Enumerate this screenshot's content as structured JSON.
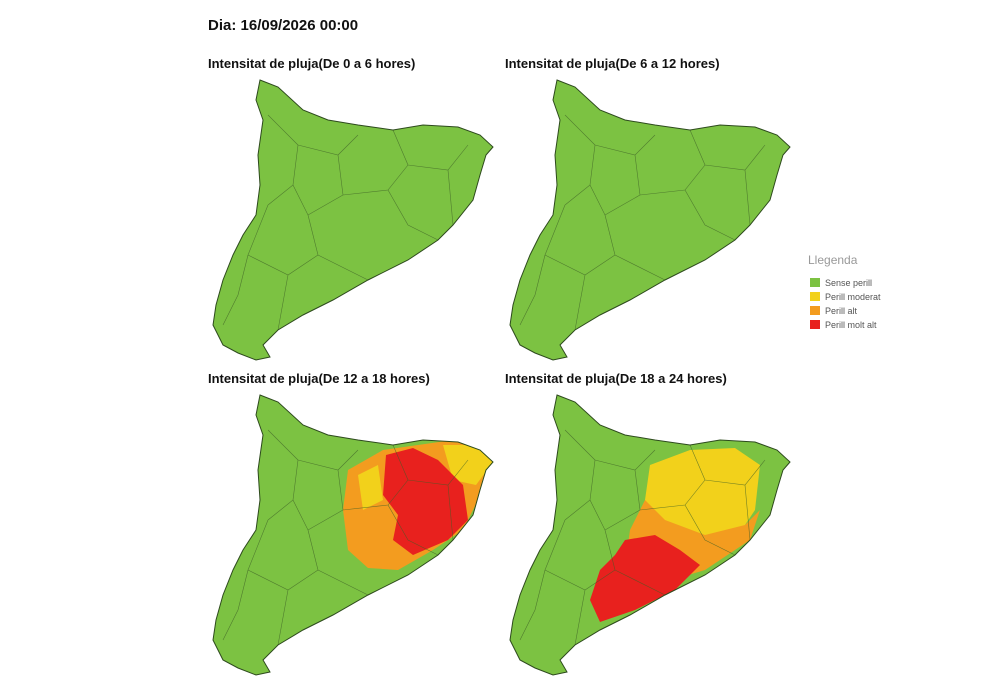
{
  "title": "Dia: 16/09/2026 00:00",
  "panels": [
    {
      "title": "Intensitat de pluja(De 0 a 6 hores)"
    },
    {
      "title": "Intensitat de pluja(De 6 a 12 hores)"
    },
    {
      "title": "Intensitat de pluja(De 12 a 18 hores)"
    },
    {
      "title": "Intensitat de pluja(De 18 a 24 hores)"
    }
  ],
  "legend": {
    "title": "Llegenda",
    "items": [
      {
        "label": "Sense perill",
        "color": "#7cc242"
      },
      {
        "label": "Perill moderat",
        "color": "#f2d11b"
      },
      {
        "label": "Perill alt",
        "color": "#f39c1f"
      },
      {
        "label": "Perill molt alt",
        "color": "#e8211e"
      }
    ]
  }
}
